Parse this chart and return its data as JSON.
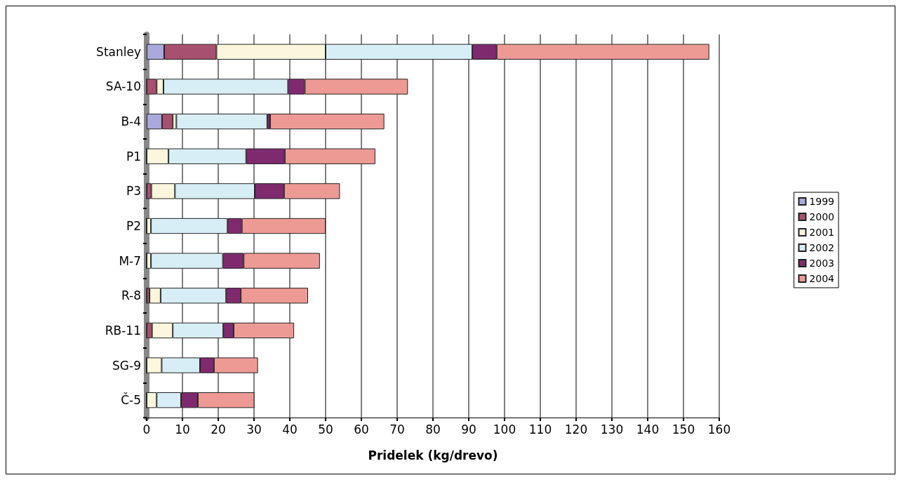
{
  "chart_data": {
    "type": "bar",
    "orientation": "horizontal",
    "stacked": true,
    "xlabel": "Pridelek (kg/drevo)",
    "categories": [
      "Stanley",
      "SA-10",
      "B-4",
      "P1",
      "P3",
      "P2",
      "M-7",
      "R-8",
      "RB-11",
      "SG-9",
      "Č-5"
    ],
    "xlim": [
      0,
      160
    ],
    "xticks": [
      0,
      10,
      20,
      30,
      40,
      50,
      60,
      70,
      80,
      90,
      100,
      110,
      120,
      130,
      140,
      150,
      160
    ],
    "grid": "x",
    "legend": "right",
    "series": [
      {
        "name": "1999",
        "color": "#a9a9dc",
        "values": [
          4.9,
          0,
          4.3,
          0,
          0,
          0,
          0,
          0,
          0,
          0,
          0
        ]
      },
      {
        "name": "2000",
        "color": "#a8506f",
        "values": [
          14.6,
          2.8,
          3,
          0,
          1.3,
          0,
          0,
          0.8,
          1.5,
          0,
          0
        ]
      },
      {
        "name": "2001",
        "color": "#fbf6dc",
        "values": [
          30.5,
          1.9,
          1,
          6.1,
          6.6,
          1.2,
          1.2,
          3.1,
          5.8,
          4.2,
          2.8
        ]
      },
      {
        "name": "2002",
        "color": "#d8eef6",
        "values": [
          41,
          34.8,
          25.4,
          21.7,
          22.3,
          21.4,
          20.1,
          18.3,
          14.1,
          10.7,
          6.8
        ]
      },
      {
        "name": "2003",
        "color": "#7f2a6f",
        "values": [
          6.8,
          4.7,
          0.8,
          10.8,
          8.2,
          4,
          5.8,
          4.1,
          2.9,
          3.9,
          4.7
        ]
      },
      {
        "name": "2004",
        "color": "#ee9a94",
        "values": [
          59.4,
          28.8,
          31.9,
          25.3,
          15.6,
          23.4,
          21.3,
          18.8,
          16.9,
          12.3,
          15.8
        ]
      }
    ]
  }
}
